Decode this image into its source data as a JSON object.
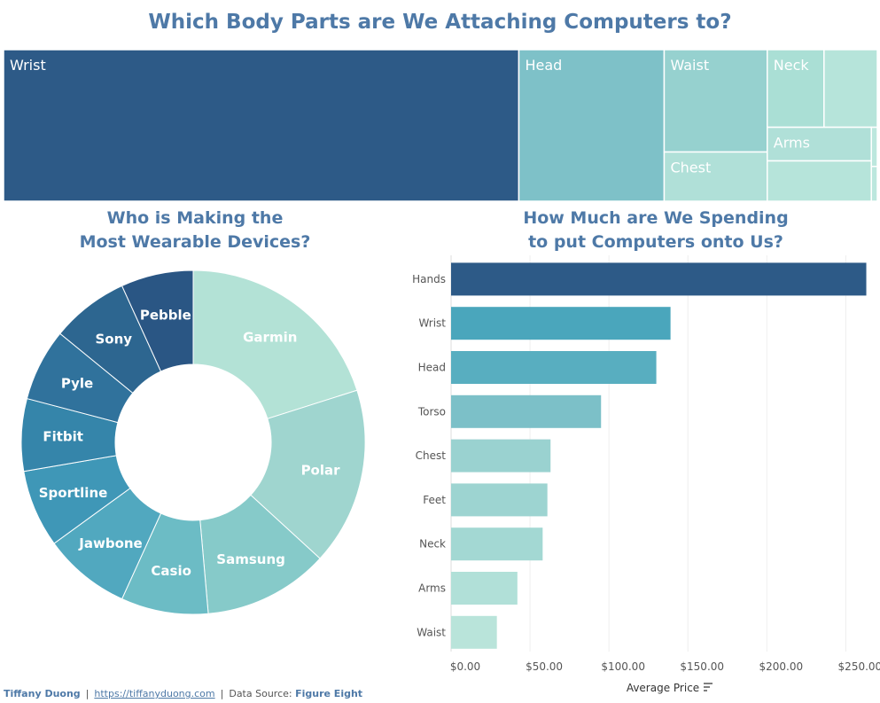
{
  "titles": {
    "main": "Which Body Parts are We Attaching Computers to?",
    "donut_line1": "Who is Making the",
    "donut_line2": "Most Wearable Devices?",
    "bar_line1": "How Much are We Spending",
    "bar_line2": "to put Computers onto Us?"
  },
  "chart_data": [
    {
      "type": "treemap",
      "title": "Which Body Parts are We Attaching Computers to?",
      "items": [
        {
          "label": "Wrist",
          "value": 58.5,
          "color": "#2d5a87"
        },
        {
          "label": "Head",
          "value": 16.5,
          "color": "#7ec1c8"
        },
        {
          "label": "Waist",
          "value": 7.9,
          "color": "#96d1cf"
        },
        {
          "label": "Chest",
          "value": 3.8,
          "color": "#b0e0d8"
        },
        {
          "label": "Neck",
          "value": 3.3,
          "color": "#aadfd5"
        },
        {
          "label": "",
          "value": 3.1,
          "color": "#b6e4da"
        },
        {
          "label": "Arms",
          "value": 2.0,
          "color": "#b0e0d8"
        },
        {
          "label": "",
          "value": 2.4,
          "color": "#b6e4da"
        },
        {
          "label": "",
          "value": 0.9,
          "color": "#bce7de"
        },
        {
          "label": "",
          "value": 0.8,
          "color": "#bce7de"
        }
      ]
    },
    {
      "type": "pie",
      "donut": true,
      "title": "Who is Making the Most Wearable Devices?",
      "slices": [
        {
          "label": "Garmin",
          "value": 20.1,
          "color": "#b3e2d6"
        },
        {
          "label": "Polar",
          "value": 16.7,
          "color": "#9fd5cf"
        },
        {
          "label": "Samsung",
          "value": 11.8,
          "color": "#86cac9"
        },
        {
          "label": "Casio",
          "value": 8.2,
          "color": "#6cbcc5"
        },
        {
          "label": "Jawbone",
          "value": 8.2,
          "color": "#51a8bf"
        },
        {
          "label": "Sportline",
          "value": 7.3,
          "color": "#3f97b7"
        },
        {
          "label": "Fitbit",
          "value": 6.8,
          "color": "#3585aa"
        },
        {
          "label": "Pyle",
          "value": 6.8,
          "color": "#30729c"
        },
        {
          "label": "Sony",
          "value": 7.3,
          "color": "#2d6690"
        },
        {
          "label": "Pebble",
          "value": 6.8,
          "color": "#2a5684"
        }
      ]
    },
    {
      "type": "bar",
      "orientation": "horizontal",
      "title": "How Much are We Spending to put Computers onto Us?",
      "xlabel": "Average Price",
      "xlim": [
        0,
        270
      ],
      "grid": true,
      "ticks": [
        "$0.00",
        "$50.00",
        "$100.00",
        "$150.00",
        "$200.00",
        "$250.00"
      ],
      "tick_values": [
        0,
        50,
        100,
        150,
        200,
        250
      ],
      "categories": [
        "Hands",
        "Wrist",
        "Head",
        "Torso",
        "Chest",
        "Feet",
        "Neck",
        "Arms",
        "Waist"
      ],
      "values": [
        263,
        139,
        130,
        95,
        63,
        61,
        58,
        42,
        29
      ],
      "colors": [
        "#2d5a87",
        "#4aa6bc",
        "#58aec0",
        "#7cc0c8",
        "#9ad2d0",
        "#9dd4d1",
        "#a3d8d3",
        "#b1e0d8",
        "#b9e4da"
      ]
    }
  ],
  "footer": {
    "author": "Tiffany Duong",
    "url": "https://tiffanyduong.com",
    "source_label": "Data Source:",
    "source": "Figure Eight",
    "divider": "|"
  }
}
